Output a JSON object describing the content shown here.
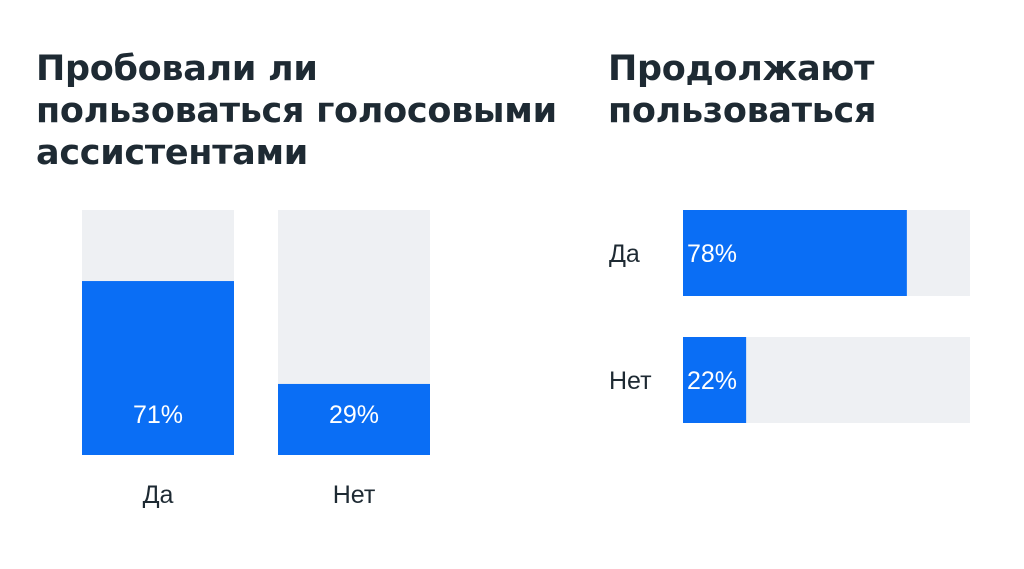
{
  "colors": {
    "fill": "#0a6ef5",
    "track": "#eef0f3",
    "text": "#1e2a33",
    "label_on_bar": "#ffffff"
  },
  "chart_data": [
    {
      "type": "bar",
      "orientation": "vertical",
      "title_lines": [
        "Пробовали ли",
        "пользоваться голосовыми",
        "ассистентами"
      ],
      "categories": [
        "Да",
        "Нет"
      ],
      "values": [
        71,
        29
      ],
      "value_labels": [
        "71%",
        "29%"
      ],
      "ylim": [
        0,
        100
      ]
    },
    {
      "type": "bar",
      "orientation": "horizontal",
      "title_lines": [
        "Продолжают",
        "пользоваться"
      ],
      "categories": [
        "Да",
        "Нет"
      ],
      "values": [
        78,
        22
      ],
      "value_labels": [
        "78%",
        "22%"
      ],
      "xlim": [
        0,
        100
      ]
    }
  ]
}
